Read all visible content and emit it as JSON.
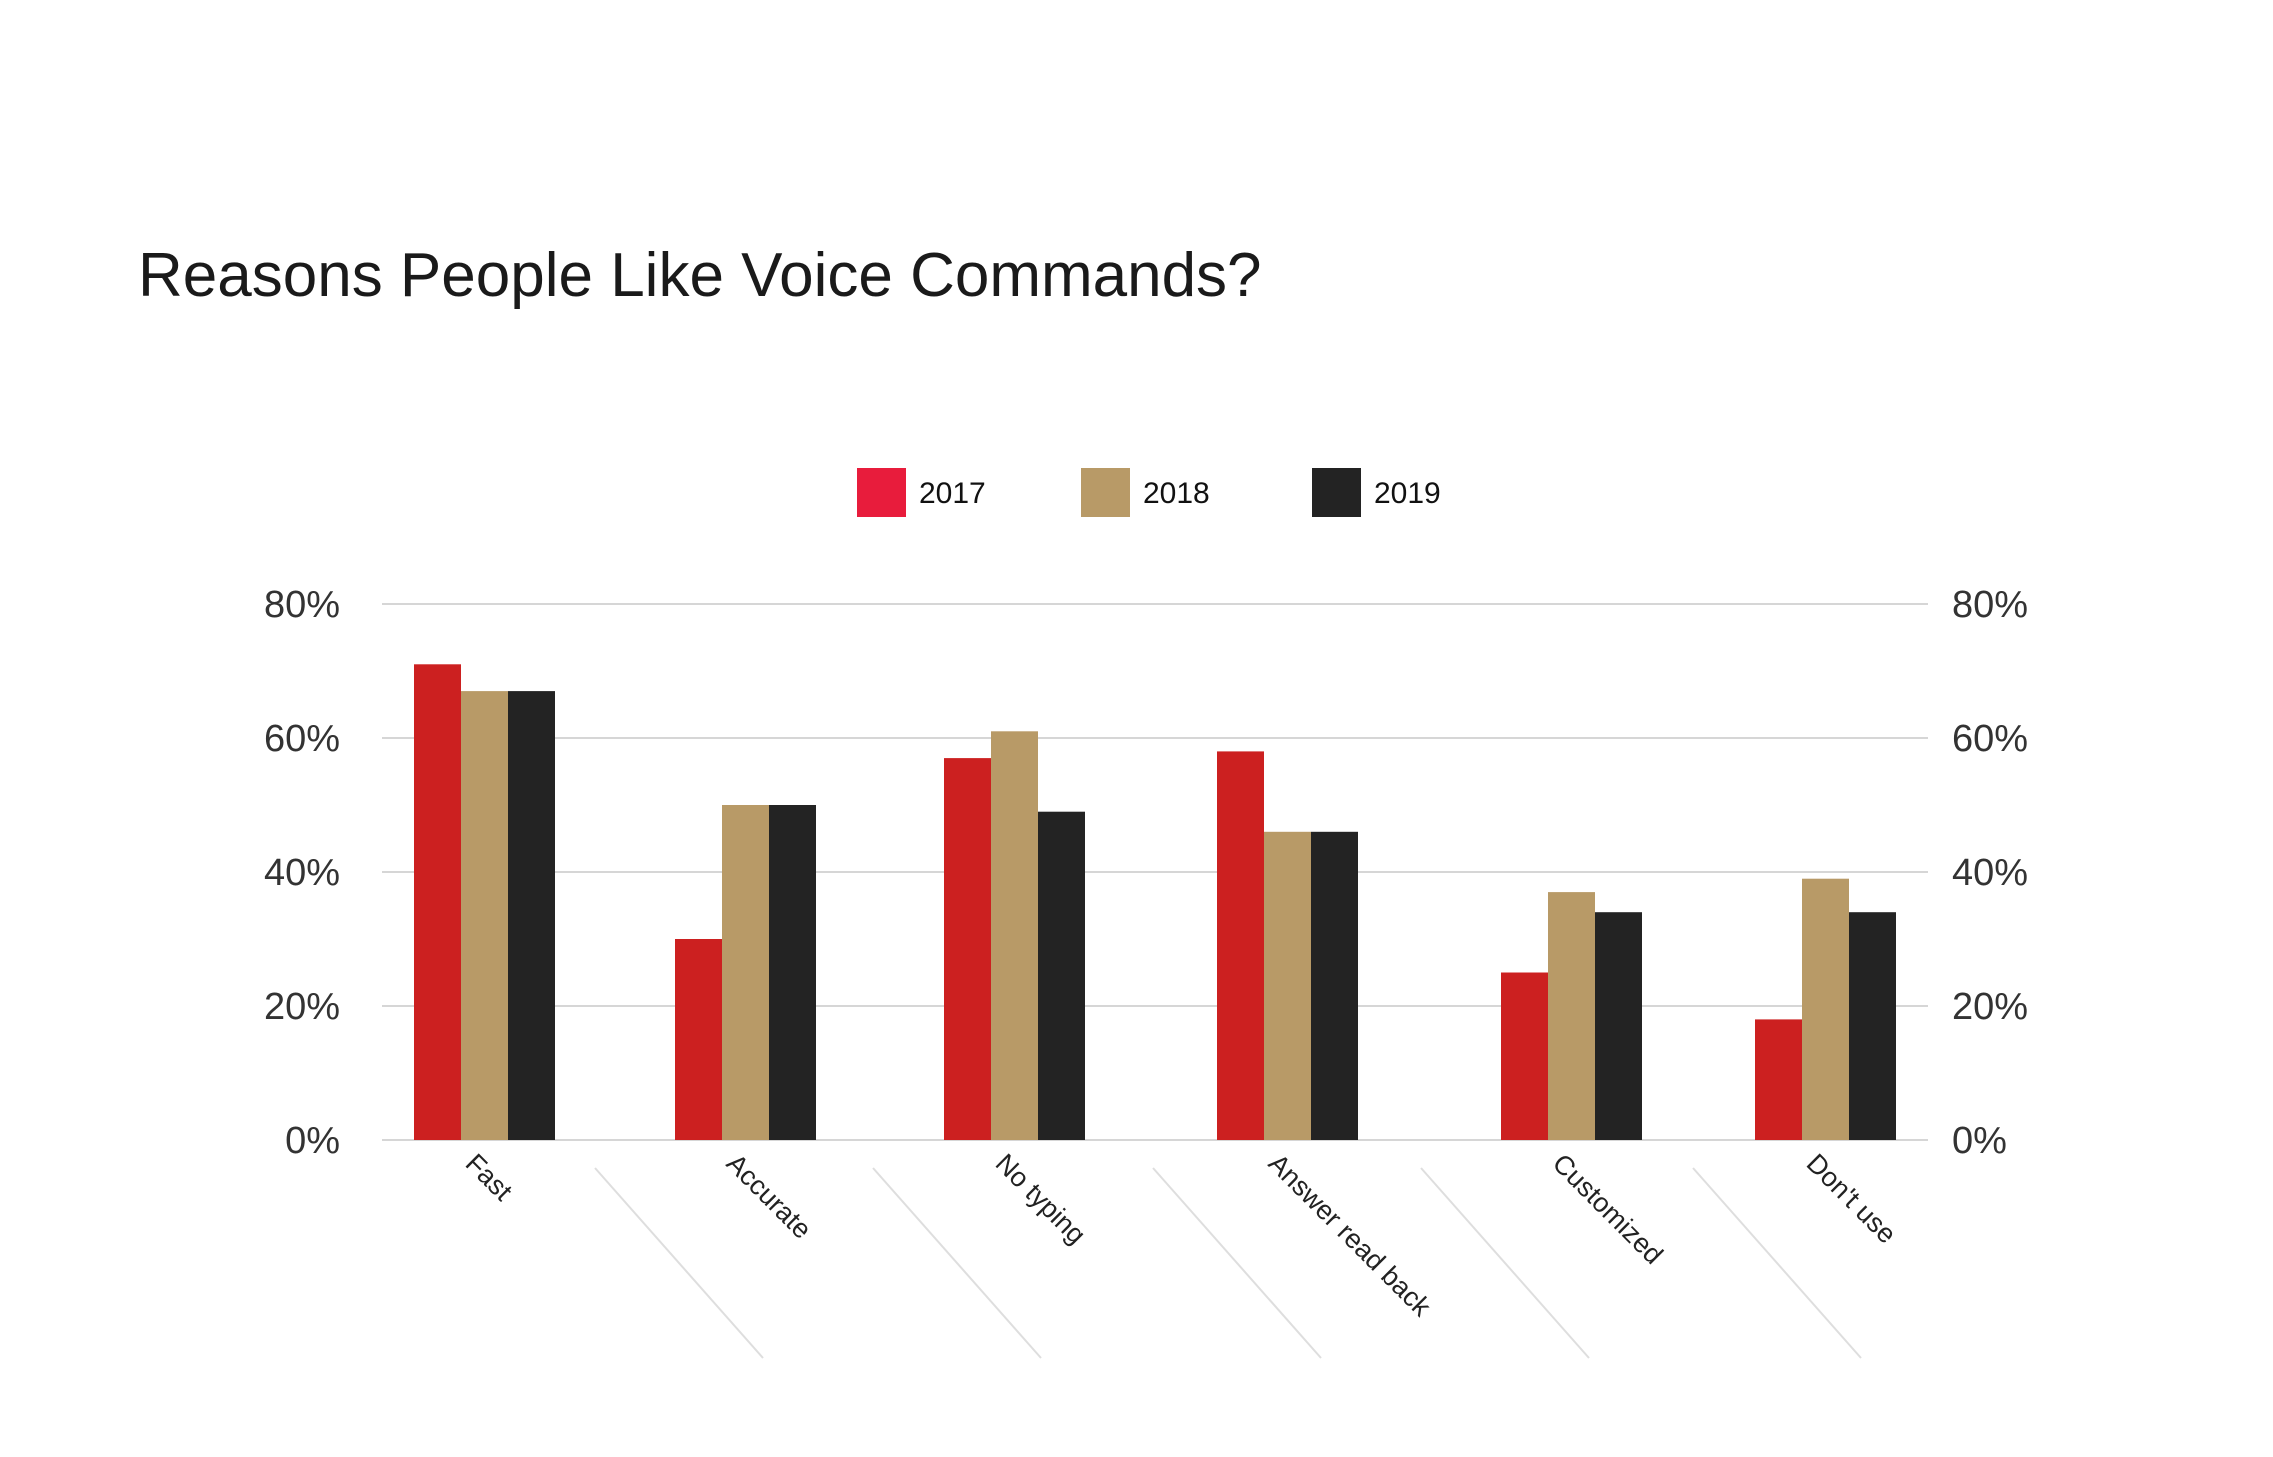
{
  "chart_data": {
    "type": "bar",
    "title": "Reasons People Like Voice Commands?",
    "categories": [
      "Fast",
      "Accurate",
      "No typing",
      "Answer read back",
      "Customized",
      "Don't use"
    ],
    "series": [
      {
        "name": "2017",
        "color": "#cc2020",
        "legend_color": "#e81c3c",
        "values": [
          71,
          30,
          57,
          58,
          25,
          18
        ]
      },
      {
        "name": "2018",
        "color": "#b89a67",
        "legend_color": "#b89a67",
        "values": [
          67,
          50,
          61,
          46,
          37,
          39
        ]
      },
      {
        "name": "2019",
        "color": "#232323",
        "legend_color": "#232323",
        "values": [
          67,
          50,
          49,
          46,
          34,
          34
        ]
      }
    ],
    "ylim": [
      0,
      80
    ],
    "yticks": [
      0,
      20,
      40,
      60,
      80
    ],
    "ytick_labels": [
      "0%",
      "20%",
      "40%",
      "60%",
      "80%"
    ],
    "secondary_yticks": true,
    "grid": true,
    "legend_position": "top-center",
    "xlabel": "",
    "ylabel": ""
  }
}
